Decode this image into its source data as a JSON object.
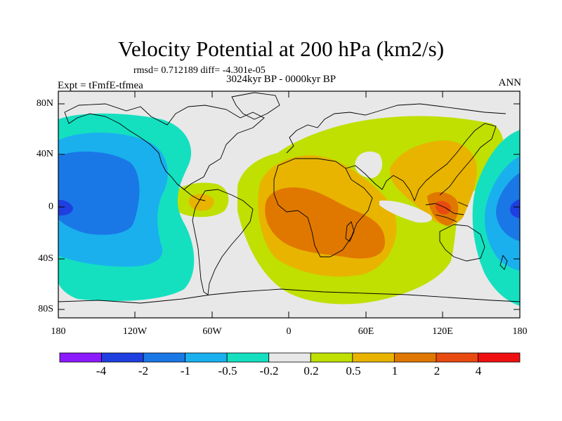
{
  "title": "Velocity Potential at 200 hPa (km2/s)",
  "stats_line": "rmsd= 0.712189 diff= -4.301e-05",
  "experiment_label": "Expt = tFmfE-tfmea",
  "period_label": "3024kyr BP - 0000kyr BP",
  "season_label": "ANN",
  "lat_ticks": [
    "80N",
    "40N",
    "0",
    "40S",
    "80S"
  ],
  "lon_ticks": [
    "180",
    "120W",
    "60W",
    "0",
    "60E",
    "120E",
    "180"
  ],
  "colorbar": {
    "labels": [
      "-4",
      "-2",
      "-1",
      "-0.5",
      "-0.2",
      "0.2",
      "0.5",
      "1",
      "2",
      "4"
    ],
    "colors": [
      "#8c1aff",
      "#1f3fe0",
      "#1a78e6",
      "#1ab0ee",
      "#14e0c0",
      "#e8e8e8",
      "#bfe000",
      "#e8b400",
      "#e07800",
      "#e84a10",
      "#ee1010"
    ]
  },
  "map_colors": {
    "neutral": "#e8e8e8",
    "pos_02": "#bfe000",
    "pos_05": "#e8b400",
    "pos_1": "#e07800",
    "pos_2": "#e84a10",
    "neg_02": "#14e0c0",
    "neg_05": "#1ab0ee",
    "neg_1": "#1a78e6",
    "neg_2": "#1f3fe0",
    "coast": "#000000"
  }
}
